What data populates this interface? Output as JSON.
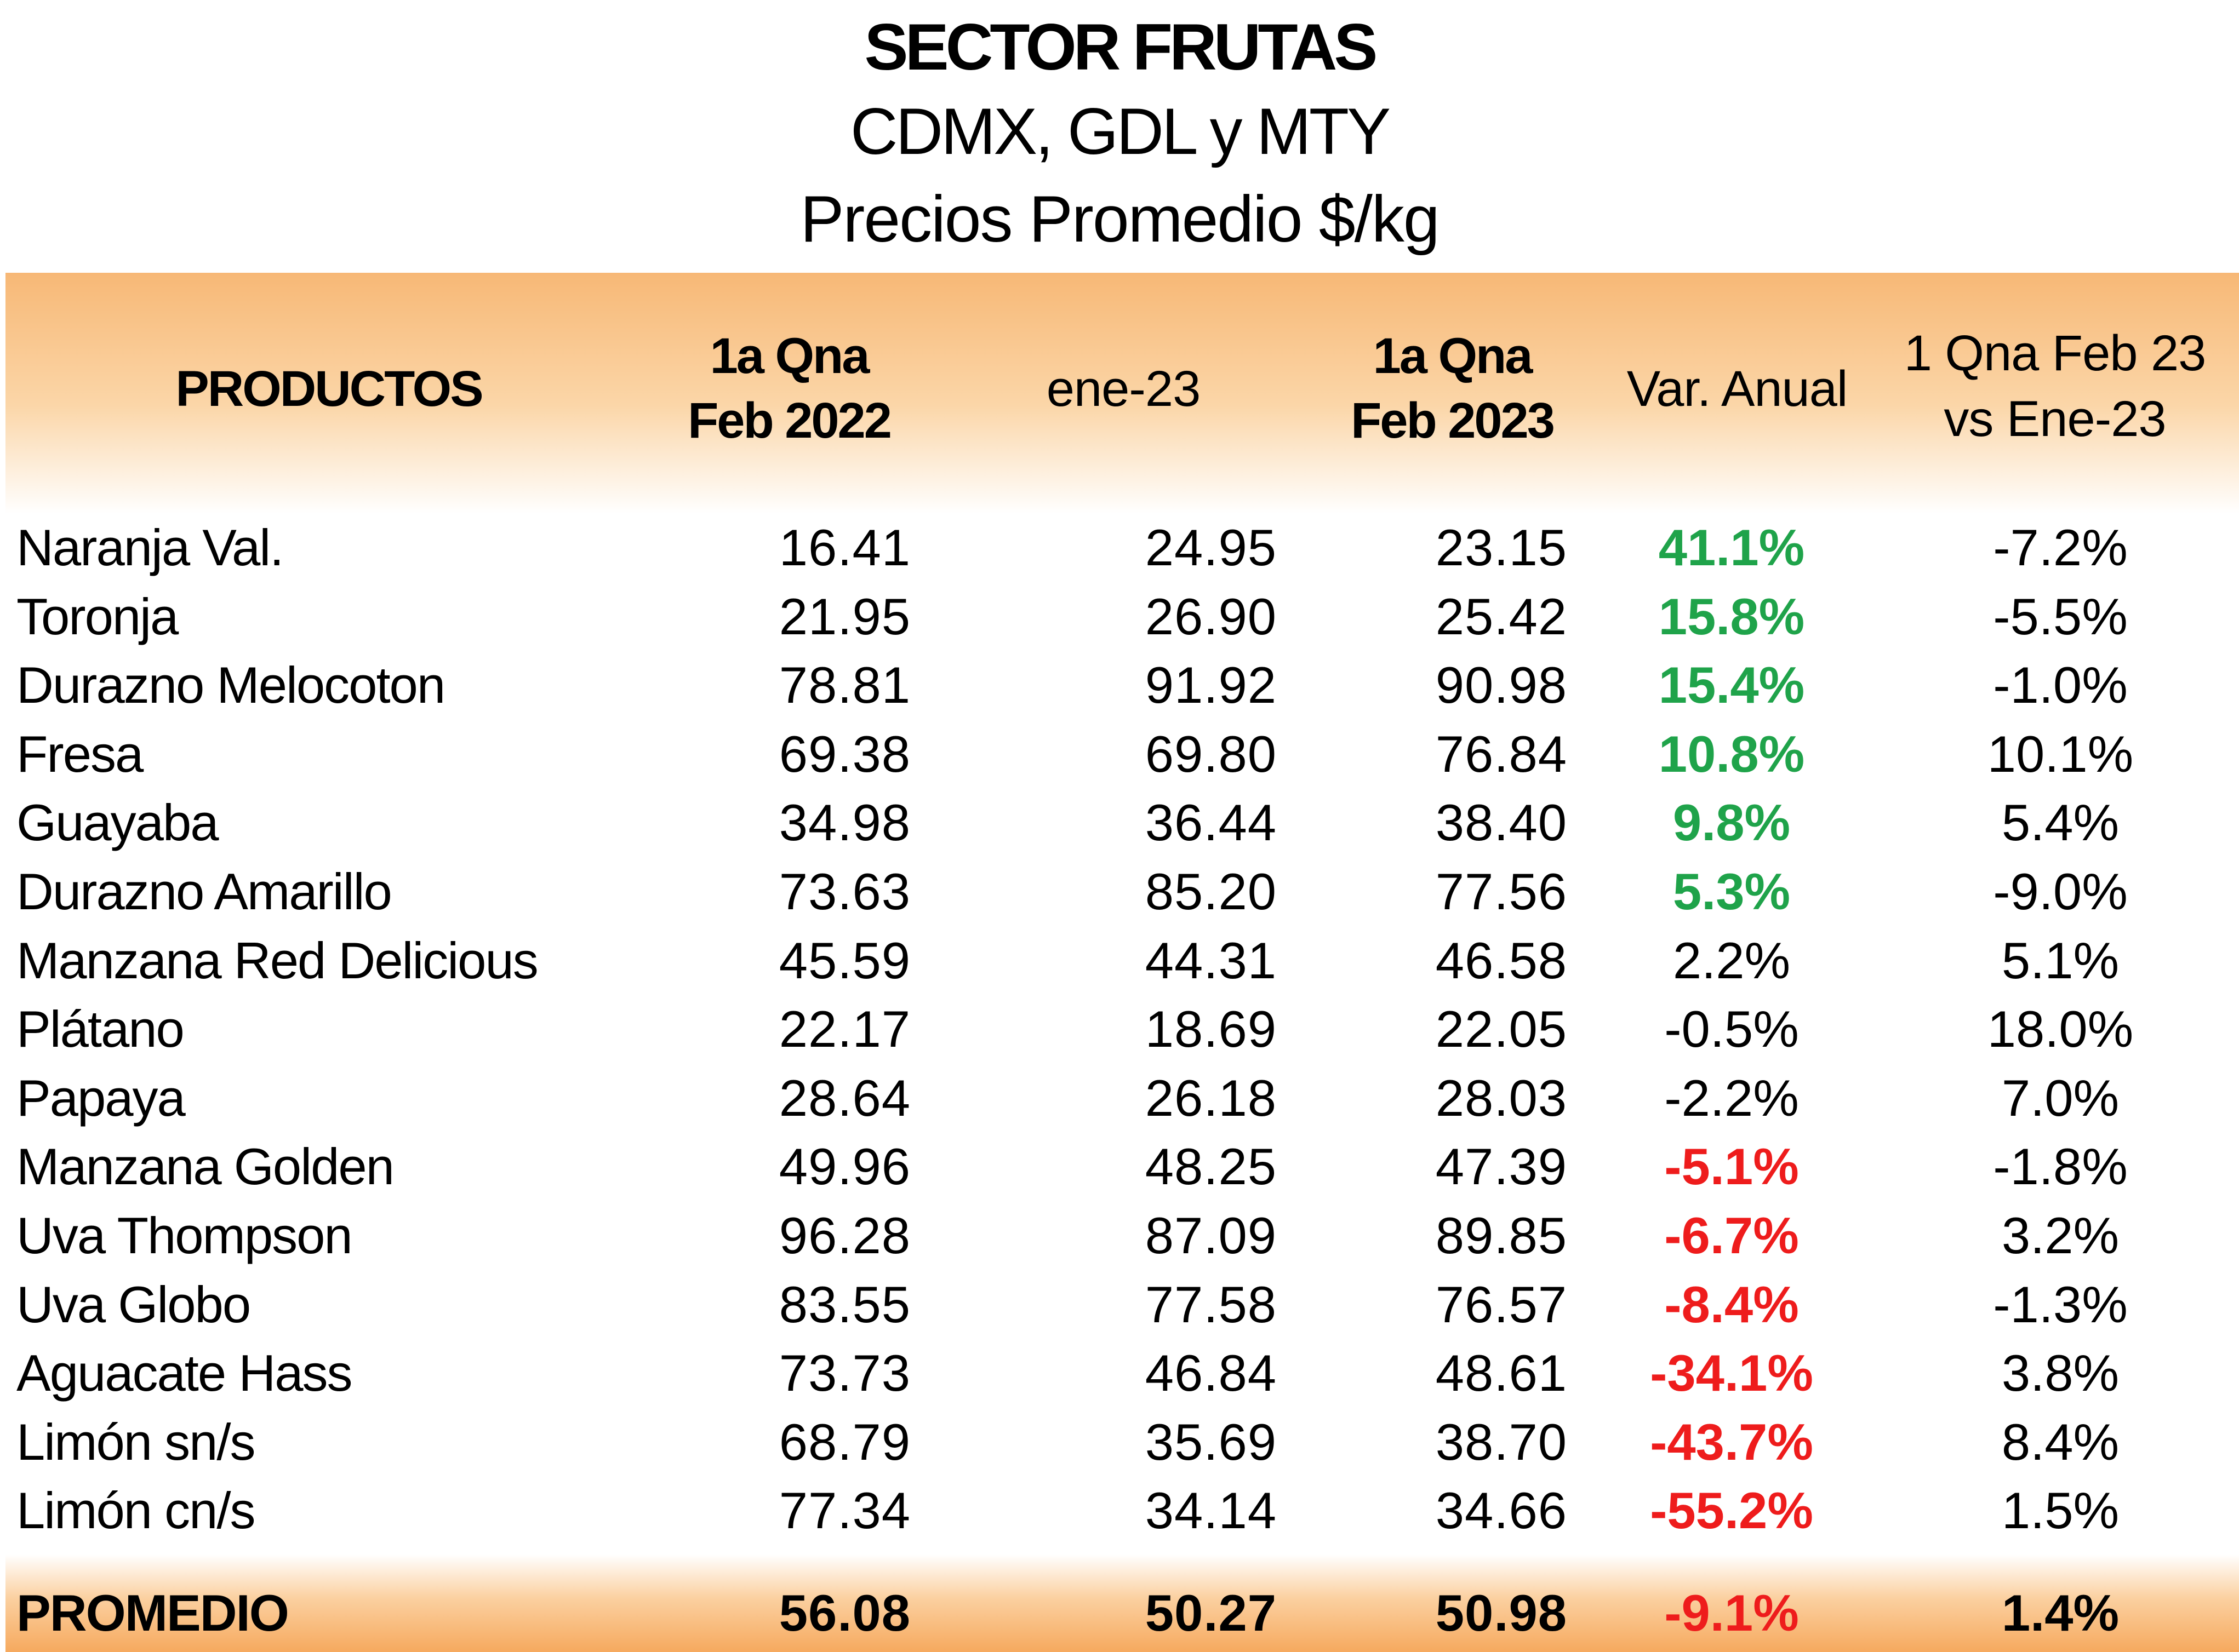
{
  "title": "SECTOR FRUTAS",
  "subtitle": "CDMX, GDL y MTY",
  "subtitle2": "Precios Promedio $/kg",
  "columns": {
    "productos": "PRODUCTOS",
    "c1_line1": "1a Qna",
    "c1_line2": "Feb 2022",
    "c2": "ene-23",
    "c3_line1": "1a Qna",
    "c3_line2": "Feb 2023",
    "var": "Var. Anual",
    "qna_line1": "1 Qna Feb 23",
    "qna_line2": "vs Ene-23"
  },
  "colors": {
    "positive": "#1fa34a",
    "negative": "#ee1c1c",
    "header": "#f7b876"
  },
  "rows": [
    {
      "name": "Naranja Val.",
      "feb22": "16.41",
      "ene23": "24.95",
      "feb23": "23.15",
      "var": "41.1%",
      "qna": "-7.2%",
      "style": "pos"
    },
    {
      "name": "Toronja",
      "feb22": "21.95",
      "ene23": "26.90",
      "feb23": "25.42",
      "var": "15.8%",
      "qna": "-5.5%",
      "style": "pos"
    },
    {
      "name": "Durazno Melocoton",
      "feb22": "78.81",
      "ene23": "91.92",
      "feb23": "90.98",
      "var": "15.4%",
      "qna": "-1.0%",
      "style": "pos"
    },
    {
      "name": "Fresa",
      "feb22": "69.38",
      "ene23": "69.80",
      "feb23": "76.84",
      "var": "10.8%",
      "qna": "10.1%",
      "style": "pos"
    },
    {
      "name": "Guayaba",
      "feb22": "34.98",
      "ene23": "36.44",
      "feb23": "38.40",
      "var": "9.8%",
      "qna": "5.4%",
      "style": "pos"
    },
    {
      "name": "Durazno Amarillo",
      "feb22": "73.63",
      "ene23": "85.20",
      "feb23": "77.56",
      "var": "5.3%",
      "qna": "-9.0%",
      "style": "pos"
    },
    {
      "name": "Manzana Red Delicious",
      "feb22": "45.59",
      "ene23": "44.31",
      "feb23": "46.58",
      "var": "2.2%",
      "qna": "5.1%",
      "style": ""
    },
    {
      "name": "Plátano",
      "feb22": "22.17",
      "ene23": "18.69",
      "feb23": "22.05",
      "var": "-0.5%",
      "qna": "18.0%",
      "style": ""
    },
    {
      "name": "Papaya",
      "feb22": "28.64",
      "ene23": "26.18",
      "feb23": "28.03",
      "var": "-2.2%",
      "qna": "7.0%",
      "style": ""
    },
    {
      "name": "Manzana Golden",
      "feb22": "49.96",
      "ene23": "48.25",
      "feb23": "47.39",
      "var": "-5.1%",
      "qna": "-1.8%",
      "style": "neg"
    },
    {
      "name": "Uva Thompson",
      "feb22": "96.28",
      "ene23": "87.09",
      "feb23": "89.85",
      "var": "-6.7%",
      "qna": "3.2%",
      "style": "neg"
    },
    {
      "name": "Uva Globo",
      "feb22": "83.55",
      "ene23": "77.58",
      "feb23": "76.57",
      "var": "-8.4%",
      "qna": "-1.3%",
      "style": "neg"
    },
    {
      "name": "Aguacate Hass",
      "feb22": "73.73",
      "ene23": "46.84",
      "feb23": "48.61",
      "var": "-34.1%",
      "qna": "3.8%",
      "style": "neg"
    },
    {
      "name": "Limón sn/s",
      "feb22": "68.79",
      "ene23": "35.69",
      "feb23": "38.70",
      "var": "-43.7%",
      "qna": "8.4%",
      "style": "neg"
    },
    {
      "name": "Limón cn/s",
      "feb22": "77.34",
      "ene23": "34.14",
      "feb23": "34.66",
      "var": "-55.2%",
      "qna": "1.5%",
      "style": "neg"
    }
  ],
  "footer": {
    "name": "PROMEDIO",
    "feb22": "56.08",
    "ene23": "50.27",
    "feb23": "50.98",
    "var": "-9.1%",
    "qna": "1.4%"
  }
}
